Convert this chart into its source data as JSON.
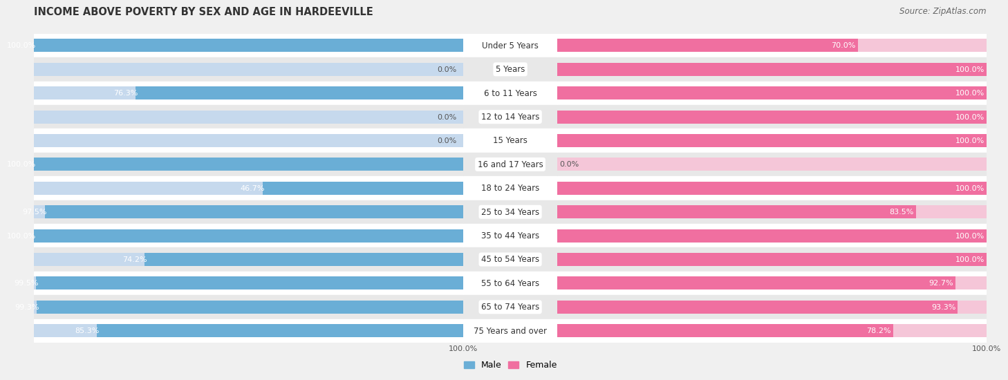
{
  "title": "INCOME ABOVE POVERTY BY SEX AND AGE IN HARDEEVILLE",
  "source": "Source: ZipAtlas.com",
  "categories": [
    "Under 5 Years",
    "5 Years",
    "6 to 11 Years",
    "12 to 14 Years",
    "15 Years",
    "16 and 17 Years",
    "18 to 24 Years",
    "25 to 34 Years",
    "35 to 44 Years",
    "45 to 54 Years",
    "55 to 64 Years",
    "65 to 74 Years",
    "75 Years and over"
  ],
  "male_values": [
    100.0,
    0.0,
    76.3,
    0.0,
    0.0,
    100.0,
    46.7,
    97.5,
    100.0,
    74.2,
    99.5,
    99.3,
    85.3
  ],
  "female_values": [
    70.0,
    100.0,
    100.0,
    100.0,
    100.0,
    0.0,
    100.0,
    83.5,
    100.0,
    100.0,
    92.7,
    93.3,
    78.2
  ],
  "male_color": "#6aaed6",
  "female_color": "#f06fa0",
  "background_color": "#f0f0f0",
  "bar_bg_male": "#c6d9ed",
  "bar_bg_female": "#f5c6d8",
  "row_color_even": "#ffffff",
  "row_color_odd": "#e8e8e8",
  "title_fontsize": 10.5,
  "source_fontsize": 8.5,
  "label_fontsize": 8.0,
  "cat_fontsize": 8.5,
  "bar_height": 0.55,
  "xlim": [
    0,
    100
  ]
}
